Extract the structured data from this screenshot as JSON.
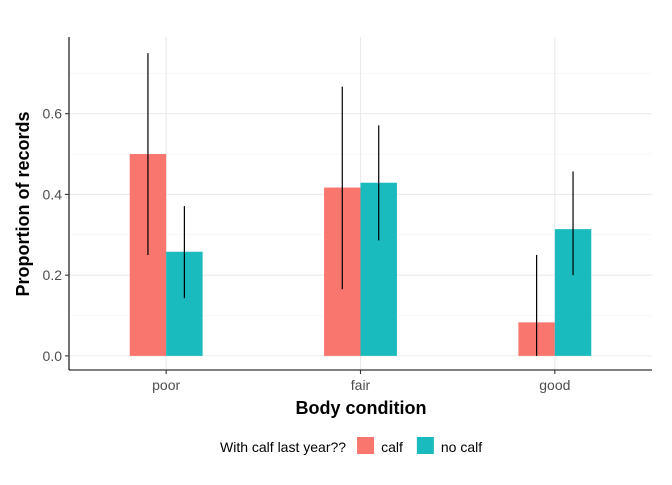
{
  "chart_data": {
    "type": "bar",
    "title": "",
    "xlabel": "Body condition",
    "ylabel": "Proportion of records",
    "categories": [
      "poor",
      "fair",
      "good"
    ],
    "ylim": [
      -0.035,
      0.79
    ],
    "yticks": [
      0.0,
      0.2,
      0.4,
      0.6
    ],
    "ytick_labels": [
      "0.0",
      "0.2",
      "0.4",
      "0.6"
    ],
    "grid": true,
    "legend": {
      "title": "With calf last year??",
      "placement": "bottom"
    },
    "series": [
      {
        "name": "calf",
        "color": "#F8766D",
        "values": [
          0.5,
          0.417,
          0.083
        ],
        "error_low": [
          0.25,
          0.165,
          0.0
        ],
        "error_high": [
          0.75,
          0.667,
          0.25
        ]
      },
      {
        "name": "no calf",
        "color": "#1ABBBE",
        "values": [
          0.258,
          0.429,
          0.314
        ],
        "error_low": [
          0.143,
          0.286,
          0.2
        ],
        "error_high": [
          0.371,
          0.571,
          0.457
        ]
      }
    ]
  }
}
